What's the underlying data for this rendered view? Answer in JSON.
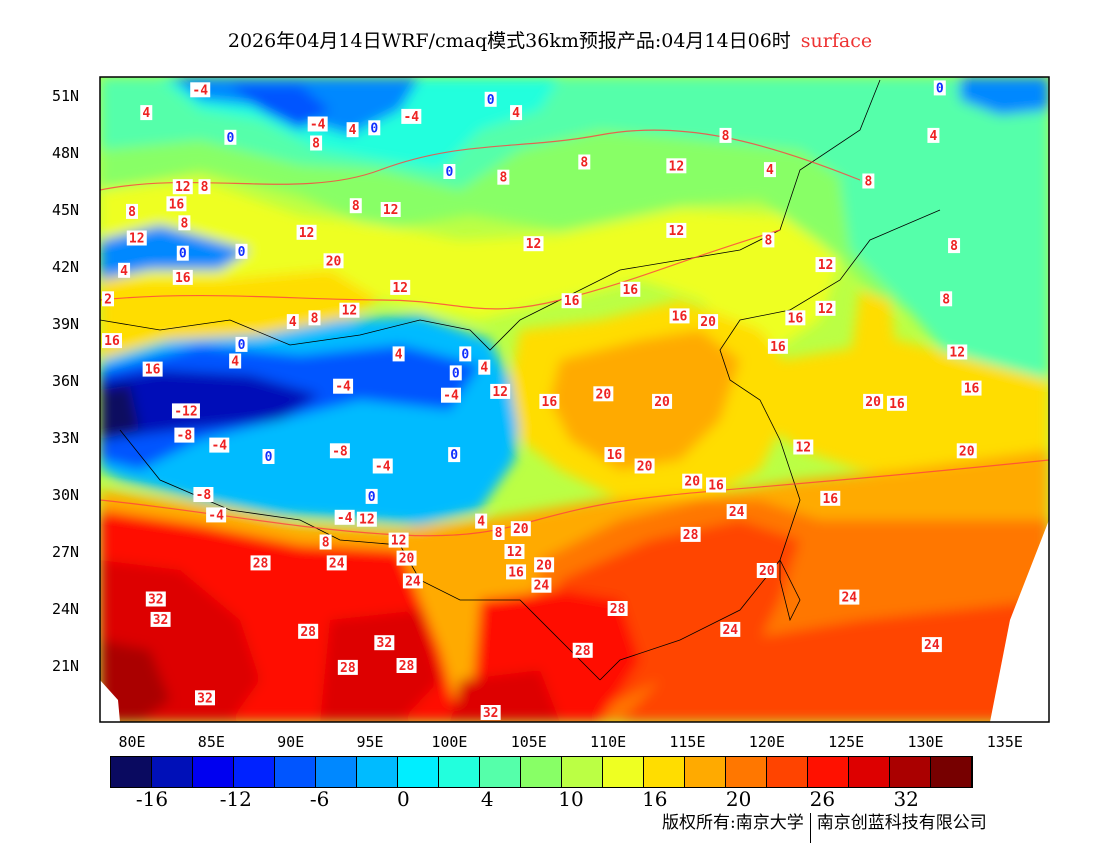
{
  "title": {
    "main": "2026年04月14日WRF/cmaq模式36km预报产品:04月14日06时",
    "level": "surface",
    "level_color": "#ee3333"
  },
  "map": {
    "lon_range": [
      78,
      137.8
    ],
    "lat_range": [
      18,
      52
    ],
    "lat_ticks": [
      "51N",
      "48N",
      "45N",
      "42N",
      "39N",
      "36N",
      "33N",
      "30N",
      "27N",
      "24N",
      "21N"
    ],
    "lat_tick_values": [
      51,
      48,
      45,
      42,
      39,
      36,
      33,
      30,
      27,
      24,
      21
    ],
    "lon_ticks": [
      "80E",
      "85E",
      "90E",
      "95E",
      "100E",
      "105E",
      "110E",
      "115E",
      "120E",
      "125E",
      "130E",
      "135E"
    ],
    "lon_tick_values": [
      80,
      85,
      90,
      95,
      100,
      105,
      110,
      115,
      120,
      125,
      130,
      135
    ],
    "contour_labels": [
      {
        "t": "-4",
        "lon": 84.3,
        "lat": 51.3
      },
      {
        "t": "4",
        "lon": 80.9,
        "lat": 50.1
      },
      {
        "t": "0",
        "lon": 86.2,
        "lat": 48.8
      },
      {
        "t": "-4",
        "lon": 91.7,
        "lat": 49.5
      },
      {
        "t": "4",
        "lon": 93.9,
        "lat": 49.2
      },
      {
        "t": "0",
        "lon": 94.7,
        "lat": 49.3
      },
      {
        "t": "8",
        "lon": 91.6,
        "lat": 48.5
      },
      {
        "t": "-4",
        "lon": 97.6,
        "lat": 49.9
      },
      {
        "t": "0",
        "lon": 102.6,
        "lat": 50.8
      },
      {
        "t": "4",
        "lon": 104.2,
        "lat": 50.1
      },
      {
        "t": "0",
        "lon": 100.0,
        "lat": 47.0
      },
      {
        "t": "8",
        "lon": 103.4,
        "lat": 46.7
      },
      {
        "t": "8",
        "lon": 108.5,
        "lat": 47.5
      },
      {
        "t": "8",
        "lon": 117.4,
        "lat": 48.9
      },
      {
        "t": "12",
        "lon": 114.3,
        "lat": 47.3
      },
      {
        "t": "4",
        "lon": 120.2,
        "lat": 47.1
      },
      {
        "t": "0",
        "lon": 130.9,
        "lat": 51.4
      },
      {
        "t": "4",
        "lon": 130.5,
        "lat": 48.9
      },
      {
        "t": "8",
        "lon": 126.4,
        "lat": 46.5
      },
      {
        "t": "12",
        "lon": 83.2,
        "lat": 46.2
      },
      {
        "t": "8",
        "lon": 84.0,
        "lat": 46.2
      },
      {
        "t": "16",
        "lon": 82.8,
        "lat": 45.3
      },
      {
        "t": "8",
        "lon": 83.3,
        "lat": 44.3
      },
      {
        "t": "8",
        "lon": 80.0,
        "lat": 44.9
      },
      {
        "t": "12",
        "lon": 80.3,
        "lat": 43.5
      },
      {
        "t": "0",
        "lon": 83.2,
        "lat": 42.7
      },
      {
        "t": "16",
        "lon": 83.2,
        "lat": 41.9
      },
      {
        "t": "4",
        "lon": 79.5,
        "lat": 41.8
      },
      {
        "t": "2",
        "lon": 78.2,
        "lat": 40.3
      },
      {
        "t": "0",
        "lon": 86.9,
        "lat": 42.8
      },
      {
        "t": "12",
        "lon": 91.0,
        "lat": 43.8
      },
      {
        "t": "8",
        "lon": 94.1,
        "lat": 45.2
      },
      {
        "t": "12",
        "lon": 96.3,
        "lat": 45.0
      },
      {
        "t": "20",
        "lon": 92.7,
        "lat": 42.3
      },
      {
        "t": "12",
        "lon": 96.9,
        "lat": 40.9
      },
      {
        "t": "12",
        "lon": 105.3,
        "lat": 43.2
      },
      {
        "t": "12",
        "lon": 114.3,
        "lat": 43.9
      },
      {
        "t": "8",
        "lon": 120.1,
        "lat": 43.4
      },
      {
        "t": "12",
        "lon": 123.7,
        "lat": 42.1
      },
      {
        "t": "8",
        "lon": 131.8,
        "lat": 43.1
      },
      {
        "t": "8",
        "lon": 131.3,
        "lat": 40.3
      },
      {
        "t": "16",
        "lon": 107.7,
        "lat": 40.2
      },
      {
        "t": "16",
        "lon": 111.4,
        "lat": 40.8
      },
      {
        "t": "12",
        "lon": 93.7,
        "lat": 39.7
      },
      {
        "t": "8",
        "lon": 91.5,
        "lat": 39.3
      },
      {
        "t": "4",
        "lon": 90.7,
        "lat": 39.1
      },
      {
        "t": "16",
        "lon": 78.5,
        "lat": 38.1
      },
      {
        "t": "0",
        "lon": 86.9,
        "lat": 37.9
      },
      {
        "t": "4",
        "lon": 86.5,
        "lat": 37.5
      },
      {
        "t": "16",
        "lon": 81.3,
        "lat": 36.6
      },
      {
        "t": "4",
        "lon": 96.8,
        "lat": 37.4
      },
      {
        "t": "0",
        "lon": 101.0,
        "lat": 37.4
      },
      {
        "t": "4",
        "lon": 102.2,
        "lat": 36.7
      },
      {
        "t": "0",
        "lon": 100.4,
        "lat": 36.4
      },
      {
        "t": "-4",
        "lon": 100.1,
        "lat": 35.7
      },
      {
        "t": "12",
        "lon": 103.2,
        "lat": 35.9
      },
      {
        "t": "-4",
        "lon": 93.3,
        "lat": 35.7
      },
      {
        "t": "16",
        "lon": 114.5,
        "lat": 39.4
      },
      {
        "t": "20",
        "lon": 116.3,
        "lat": 39.1
      },
      {
        "t": "16",
        "lon": 121.8,
        "lat": 39.3
      },
      {
        "t": "12",
        "lon": 123.7,
        "lat": 39.8
      },
      {
        "t": "16",
        "lon": 120.7,
        "lat": 37.8
      },
      {
        "t": "12",
        "lon": 132.0,
        "lat": 37.5
      },
      {
        "t": "16",
        "lon": 132.9,
        "lat": 35.6
      },
      {
        "t": "20",
        "lon": 126.7,
        "lat": 34.9
      },
      {
        "t": "16",
        "lon": 128.2,
        "lat": 34.8
      },
      {
        "t": "20",
        "lon": 109.7,
        "lat": 35.3
      },
      {
        "t": "20",
        "lon": 113.4,
        "lat": 34.9
      },
      {
        "t": "16",
        "lon": 106.3,
        "lat": 34.9
      },
      {
        "t": "-12",
        "lon": 83.4,
        "lat": 34.4
      },
      {
        "t": "-8",
        "lon": 83.3,
        "lat": 33.6
      },
      {
        "t": "-4",
        "lon": 85.5,
        "lat": 32.6
      },
      {
        "t": "0",
        "lon": 88.6,
        "lat": 32.0
      },
      {
        "t": "-8",
        "lon": 93.1,
        "lat": 32.3
      },
      {
        "t": "-4",
        "lon": 95.8,
        "lat": 31.5
      },
      {
        "t": "0",
        "lon": 100.3,
        "lat": 32.1
      },
      {
        "t": "12",
        "lon": 122.3,
        "lat": 32.5
      },
      {
        "t": "20",
        "lon": 132.6,
        "lat": 32.3
      },
      {
        "t": "16",
        "lon": 110.4,
        "lat": 32.1
      },
      {
        "t": "20",
        "lon": 112.3,
        "lat": 31.5
      },
      {
        "t": "20",
        "lon": 115.3,
        "lat": 30.7
      },
      {
        "t": "16",
        "lon": 116.8,
        "lat": 30.5
      },
      {
        "t": "16",
        "lon": 124.0,
        "lat": 29.8
      },
      {
        "t": "-8",
        "lon": 84.5,
        "lat": 30.0
      },
      {
        "t": "-4",
        "lon": 85.3,
        "lat": 29.4
      },
      {
        "t": "0",
        "lon": 95.1,
        "lat": 29.9
      },
      {
        "t": "-4",
        "lon": 93.4,
        "lat": 28.8
      },
      {
        "t": "12",
        "lon": 94.8,
        "lat": 28.7
      },
      {
        "t": "4",
        "lon": 102.0,
        "lat": 28.6
      },
      {
        "t": "20",
        "lon": 104.5,
        "lat": 28.2
      },
      {
        "t": "8",
        "lon": 103.1,
        "lat": 28.0
      },
      {
        "t": "24",
        "lon": 118.1,
        "lat": 29.1
      },
      {
        "t": "28",
        "lon": 115.2,
        "lat": 27.9
      },
      {
        "t": "8",
        "lon": 92.2,
        "lat": 27.5
      },
      {
        "t": "12",
        "lon": 96.8,
        "lat": 27.6
      },
      {
        "t": "20",
        "lon": 97.3,
        "lat": 27.6
      },
      {
        "t": "12",
        "lon": 104.1,
        "lat": 27.0
      },
      {
        "t": "16",
        "lon": 104.2,
        "lat": 26.4
      },
      {
        "t": "20",
        "lon": 105.4,
        "lat": 26.3
      },
      {
        "t": "24",
        "lon": 105.8,
        "lat": 25.7
      },
      {
        "t": "28",
        "lon": 88.1,
        "lat": 26.4
      },
      {
        "t": "24",
        "lon": 92.9,
        "lat": 26.4
      },
      {
        "t": "24",
        "lon": 97.7,
        "lat": 26.4
      },
      {
        "t": "20",
        "lon": 120.0,
        "lat": 26.0
      },
      {
        "t": "24",
        "lon": 125.2,
        "lat": 24.6
      },
      {
        "t": "32",
        "lon": 81.5,
        "lat": 24.5
      },
      {
        "t": "32",
        "lon": 81.8,
        "lat": 23.9
      },
      {
        "t": "28",
        "lon": 110.6,
        "lat": 24.0
      },
      {
        "t": "24",
        "lon": 117.7,
        "lat": 22.9
      },
      {
        "t": "28",
        "lon": 91.1,
        "lat": 22.8
      },
      {
        "t": "32",
        "lon": 95.9,
        "lat": 22.2
      },
      {
        "t": "24",
        "lon": 130.4,
        "lat": 22.1
      },
      {
        "t": "28",
        "lon": 108.4,
        "lat": 21.8
      },
      {
        "t": "28",
        "lon": 93.6,
        "lat": 20.9
      },
      {
        "t": "28",
        "lon": 97.3,
        "lat": 21.0
      },
      {
        "t": "32",
        "lon": 84.6,
        "lat": 19.3
      },
      {
        "t": "32",
        "lon": 102.6,
        "lat": 18.5
      }
    ]
  },
  "colorbar": {
    "colors": [
      "#0a0a60",
      "#0010b8",
      "#0000f0",
      "#0022ff",
      "#0055ff",
      "#0088ff",
      "#00bbff",
      "#00eeff",
      "#22ffdd",
      "#55ffaa",
      "#88ff66",
      "#bbff44",
      "#eeff22",
      "#ffdd00",
      "#ffaa00",
      "#ff7700",
      "#ff4400",
      "#ff1100",
      "#dd0000",
      "#aa0000",
      "#770000"
    ],
    "labels": [
      "-16",
      "-12",
      "-6",
      "0",
      "4",
      "10",
      "16",
      "20",
      "26",
      "32"
    ]
  },
  "copyright": {
    "left": "版权所有:南京大学",
    "right": "南京创蓝科技有限公司"
  }
}
